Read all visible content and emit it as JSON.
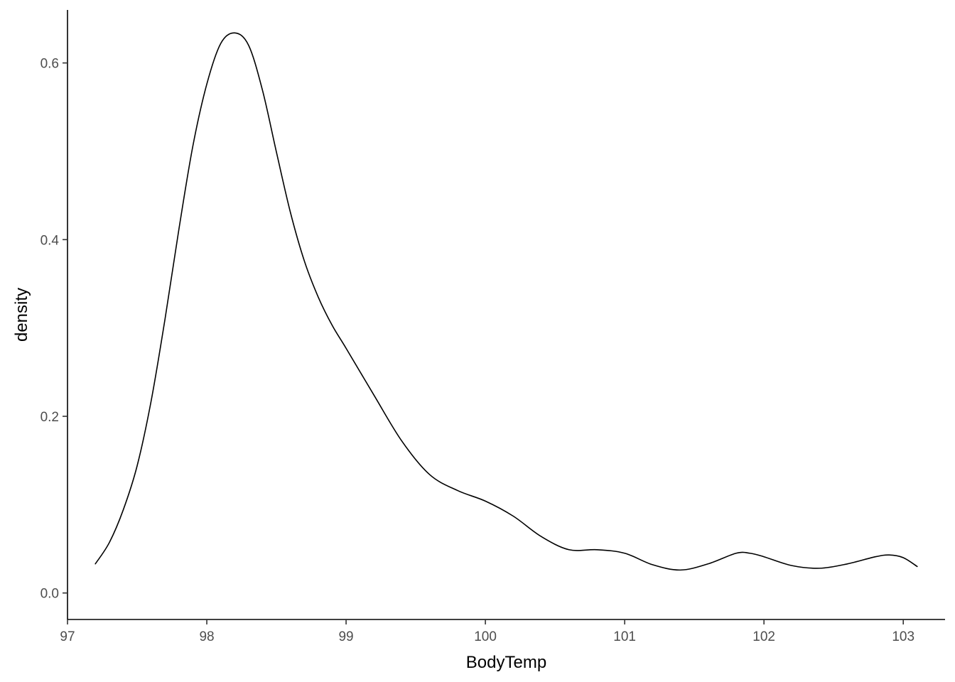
{
  "chart_data": {
    "type": "line",
    "title": "",
    "xlabel": "BodyTemp",
    "ylabel": "density",
    "xlim": [
      97.0,
      103.3
    ],
    "ylim": [
      -0.03,
      0.66
    ],
    "x_ticks": [
      97,
      98,
      99,
      100,
      101,
      102,
      103
    ],
    "x_tick_labels": [
      "97",
      "98",
      "99",
      "100",
      "101",
      "102",
      "103"
    ],
    "y_ticks": [
      0.0,
      0.2,
      0.4,
      0.6
    ],
    "y_tick_labels": [
      "0.0",
      "0.2",
      "0.4",
      "0.6"
    ],
    "grid": false,
    "legend": "none",
    "line_color": "#000000",
    "series": [
      {
        "x": [
          97.2,
          97.3,
          97.4,
          97.5,
          97.6,
          97.7,
          97.8,
          97.9,
          98.0,
          98.1,
          98.2,
          98.3,
          98.4,
          98.5,
          98.6,
          98.7,
          98.8,
          98.9,
          99.0,
          99.2,
          99.4,
          99.6,
          99.8,
          100.0,
          100.2,
          100.4,
          100.6,
          100.8,
          101.0,
          101.2,
          101.4,
          101.6,
          101.8,
          101.9,
          102.0,
          102.2,
          102.4,
          102.6,
          102.8,
          102.9,
          103.0,
          103.1
        ],
        "y": [
          0.033,
          0.057,
          0.094,
          0.144,
          0.217,
          0.31,
          0.412,
          0.506,
          0.576,
          0.622,
          0.634,
          0.62,
          0.569,
          0.499,
          0.431,
          0.376,
          0.335,
          0.303,
          0.277,
          0.224,
          0.172,
          0.134,
          0.116,
          0.104,
          0.087,
          0.064,
          0.049,
          0.049,
          0.045,
          0.032,
          0.026,
          0.033,
          0.045,
          0.045,
          0.041,
          0.031,
          0.028,
          0.033,
          0.041,
          0.043,
          0.04,
          0.03
        ]
      }
    ]
  }
}
